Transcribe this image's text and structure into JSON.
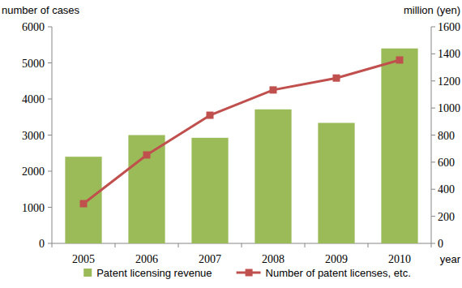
{
  "chart_data": {
    "type": "bar",
    "y_label": "number of cases",
    "y2_label": "million (yen)",
    "x_label": "year",
    "categories": [
      "2005",
      "2006",
      "2007",
      "2008",
      "2009",
      "2010"
    ],
    "series": [
      {
        "name": "Patent licensing revenue",
        "type": "bar",
        "color": "#9bbb59",
        "axis": "y2",
        "values": [
          640,
          800,
          780,
          990,
          890,
          1440
        ]
      },
      {
        "name": "Number of patent licenses, etc.",
        "type": "line",
        "color": "#c0504d",
        "marker": "square",
        "values": [
          1100,
          2450,
          3550,
          4250,
          4580,
          5080
        ]
      }
    ],
    "ylim": [
      0,
      6000
    ],
    "yticks": [
      0,
      1000,
      2000,
      3000,
      4000,
      5000,
      6000
    ],
    "y2lim": [
      0,
      1600
    ],
    "y2ticks": [
      0,
      200,
      400,
      600,
      800,
      1000,
      1200,
      1400,
      1600
    ],
    "grid": false,
    "legend": "bottom"
  }
}
